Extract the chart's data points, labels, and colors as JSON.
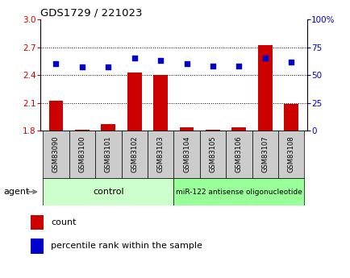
{
  "title": "GDS1729 / 221023",
  "samples": [
    "GSM83090",
    "GSM83100",
    "GSM83101",
    "GSM83102",
    "GSM83103",
    "GSM83104",
    "GSM83105",
    "GSM83106",
    "GSM83107",
    "GSM83108"
  ],
  "count_values": [
    2.12,
    1.81,
    1.87,
    2.43,
    2.4,
    1.84,
    1.81,
    1.84,
    2.72,
    2.09
  ],
  "percentile_values": [
    60,
    57,
    57,
    65,
    63,
    60,
    58,
    58,
    65,
    62
  ],
  "ylim_left": [
    1.8,
    3.0
  ],
  "ylim_right": [
    0,
    100
  ],
  "yticks_left": [
    1.8,
    2.1,
    2.4,
    2.7,
    3.0
  ],
  "yticks_right": [
    0,
    25,
    50,
    75,
    100
  ],
  "ytick_labels_right": [
    "0",
    "25",
    "50",
    "75",
    "100%"
  ],
  "hlines": [
    2.1,
    2.4,
    2.7
  ],
  "bar_color": "#cc0000",
  "scatter_color": "#0000cc",
  "control_label": "control",
  "treatment_label": "miR-122 antisense oligonucleotide",
  "agent_label": "agent",
  "legend_count_label": "count",
  "legend_percentile_label": "percentile rank within the sample",
  "control_bg": "#ccffcc",
  "treatment_bg": "#99ff99",
  "ticklabel_area_bg": "#cccccc",
  "left_tick_color": "#cc0000",
  "right_tick_color": "#0000cc"
}
